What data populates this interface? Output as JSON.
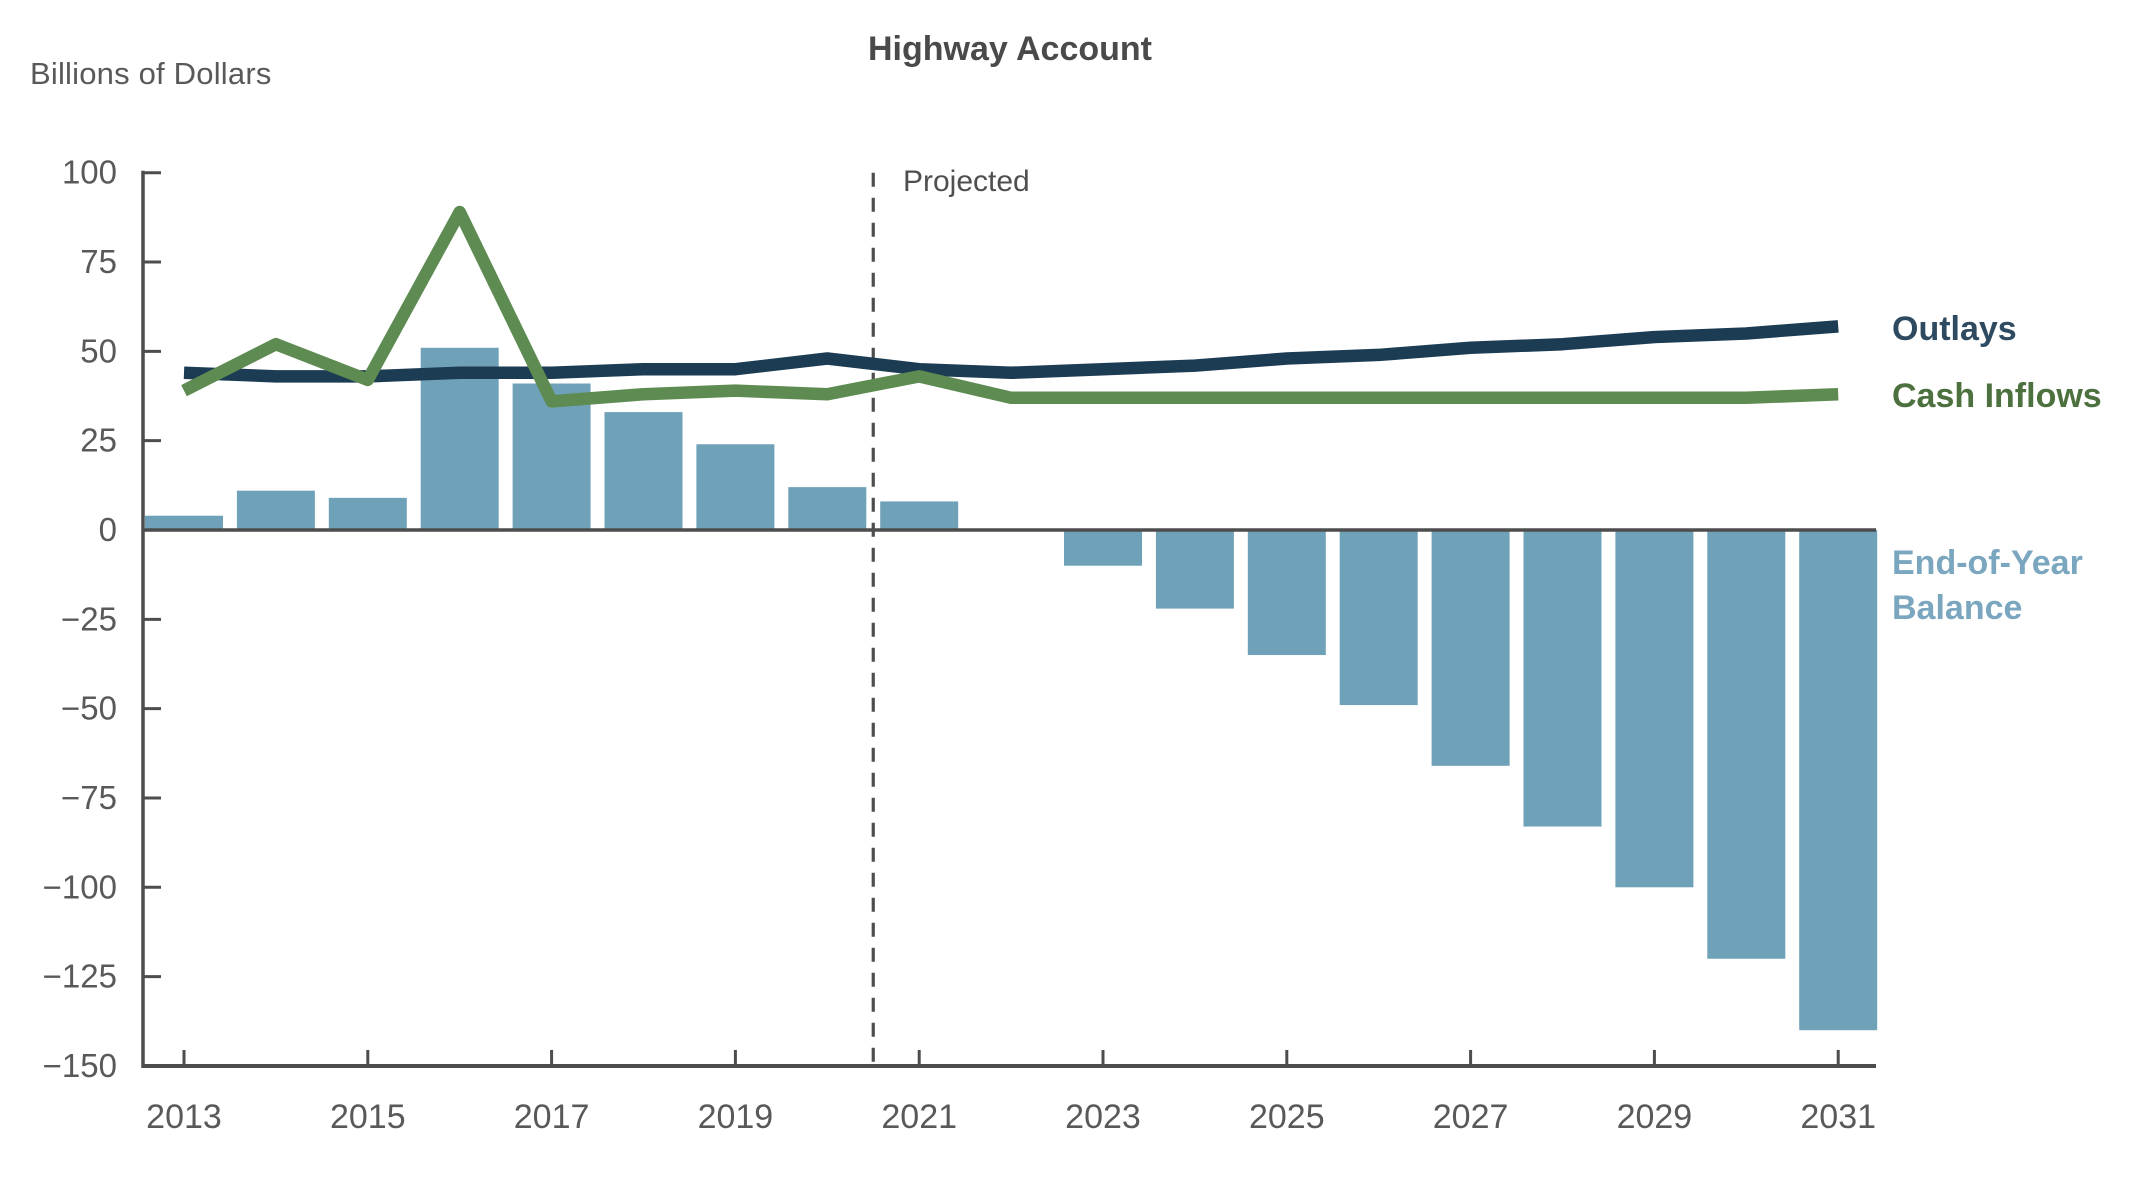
{
  "header": {
    "units_label": "Billions of Dollars",
    "title": "Highway Account"
  },
  "plot": {
    "projected_label": "Projected",
    "outlays_label": "Outlays",
    "cash_inflows_label": "Cash Inflows",
    "balance_label_line1": "End-of-Year",
    "balance_label_line2": "Balance"
  },
  "colors": {
    "outlays_line": "#1c3c53",
    "cash_inflows_line": "#5d8b51",
    "balance_bar": "#6fa2b8",
    "outlays_label_text": "#2d4a61",
    "cash_inflows_label_text": "#4c703e",
    "balance_label_text": "#7aa7bf",
    "axis": "#4d4d4d",
    "tick_text": "#595959",
    "title_text": "#4a4a4a",
    "projected_divider": "#4d4d4d"
  },
  "chart_data": {
    "type": "bar+line combo",
    "title": "Highway Account",
    "ylabel": "Billions of Dollars",
    "ylim": [
      -150,
      100
    ],
    "y_tick_interval": 25,
    "y_tick_values": [
      100,
      75,
      50,
      25,
      0,
      -25,
      -50,
      -75,
      -100,
      -125,
      -150
    ],
    "y_tick_labels": [
      "100",
      "75",
      "50",
      "25",
      "0",
      "−25",
      "−50",
      "−75",
      "−100",
      "−125",
      "−150"
    ],
    "years": [
      2013,
      2014,
      2015,
      2016,
      2017,
      2018,
      2019,
      2020,
      2021,
      2022,
      2023,
      2024,
      2025,
      2026,
      2027,
      2028,
      2029,
      2030,
      2031
    ],
    "x_tick_labels": [
      "2013",
      "2015",
      "2017",
      "2019",
      "2021",
      "2023",
      "2025",
      "2027",
      "2029",
      "2031"
    ],
    "x_tick_years": [
      2013,
      2015,
      2017,
      2019,
      2021,
      2023,
      2025,
      2027,
      2029,
      2031
    ],
    "projected_divider_between": [
      2020,
      2021
    ],
    "annotation": "Projected",
    "grid": false,
    "legend_position": "direct labels at right edge",
    "series": [
      {
        "name": "Outlays",
        "type": "line",
        "color": "#1c3c53",
        "values": [
          44,
          43,
          43,
          44,
          44,
          45,
          45,
          48,
          45,
          44,
          45,
          46,
          48,
          49,
          51,
          52,
          54,
          55,
          57
        ]
      },
      {
        "name": "Cash Inflows",
        "type": "line",
        "color": "#5d8b51",
        "values": [
          39,
          52,
          42,
          89,
          36,
          38,
          39,
          38,
          43,
          37,
          37,
          37,
          37,
          37,
          37,
          37,
          37,
          37,
          38
        ]
      },
      {
        "name": "End-of-Year Balance",
        "type": "bar",
        "color": "#6fa2b8",
        "values": [
          4,
          11,
          9,
          51,
          41,
          33,
          24,
          12,
          8,
          0,
          -10,
          -22,
          -35,
          -49,
          -66,
          -83,
          -100,
          -120,
          -140
        ]
      }
    ]
  }
}
